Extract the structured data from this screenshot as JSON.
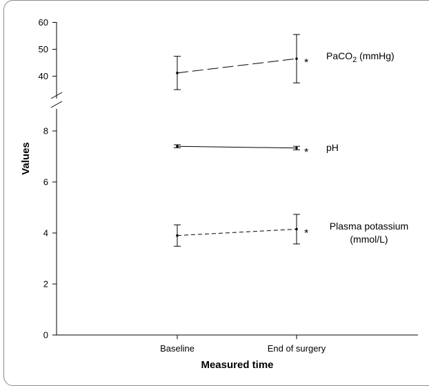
{
  "chart_data": {
    "type": "line",
    "xlabel": "Measured time",
    "ylabel": "Values",
    "categories": [
      "Baseline",
      "End of surgery"
    ],
    "y_axis": {
      "broken": true,
      "lower_ticks": [
        "0",
        "2",
        "4",
        "6",
        "8"
      ],
      "upper_ticks": [
        "40",
        "50",
        "60"
      ]
    },
    "series": [
      {
        "name": "PaCO2 (mmHg)",
        "name_parts": {
          "base": "PaCO",
          "sub": "2",
          "rest": " (mmHg)"
        },
        "values": [
          41.2,
          46.5
        ],
        "error": [
          6.2,
          9.0
        ],
        "significance": "*",
        "line_style": "long-dash",
        "segment": "upper"
      },
      {
        "name": "pH",
        "values": [
          7.4,
          7.33
        ],
        "error": [
          0.06,
          0.07
        ],
        "significance": "*",
        "line_style": "solid",
        "segment": "lower"
      },
      {
        "name": "Plasma potassium (mmol/L)",
        "name_lines": [
          "Plasma potassium",
          "(mmol/L)"
        ],
        "values": [
          3.9,
          4.15
        ],
        "error": [
          0.42,
          0.58
        ],
        "significance": "*",
        "line_style": "short-dash",
        "segment": "lower"
      }
    ]
  }
}
